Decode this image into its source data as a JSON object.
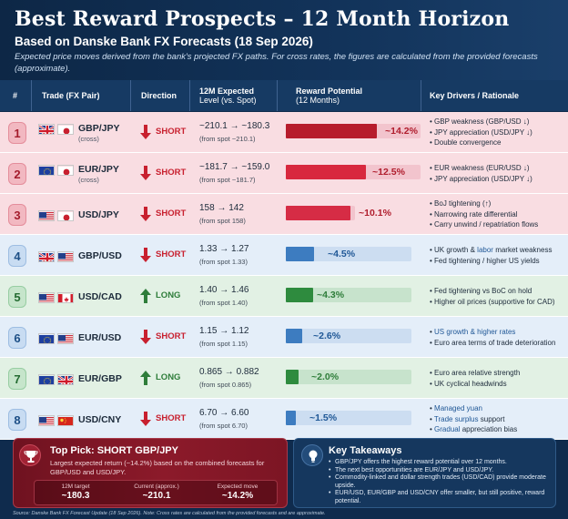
{
  "header": {
    "title": "Best Reward Prospects – 12 Month Horizon",
    "subtitle": "Based on Danske Bank FX Forecasts (18 Sep 2026)",
    "note": "Expected price moves derived from the bank's projected FX paths. For cross rates, the figures are calculated from the provided forecasts (approximate)."
  },
  "columns": {
    "num": "#",
    "trade": "Trade (FX Pair)",
    "direction": "Direction",
    "level_line1": "12M Expected",
    "level_line2": "Level (vs. Spot)",
    "reward_line1": "Reward Potential",
    "reward_line2": "(12 Months)",
    "drivers": "Key Drivers / Rationale"
  },
  "rows": [
    {
      "num": "1",
      "pair": "GBP/JPY",
      "pair_sub": "(cross)",
      "direction": "SHORT",
      "level": "~210.1 → ~180.3",
      "from_spot": "(from spot ~210.1)",
      "reward": "~14.2%",
      "reward_value": 14.2,
      "drivers": [
        "GBP weakness (GBP/USD ↓)",
        "JPY appreciation (USD/JPY ↓)",
        "Double convergence"
      ]
    },
    {
      "num": "2",
      "pair": "EUR/JPY",
      "pair_sub": "(cross)",
      "direction": "SHORT",
      "level": "~181.7 → ~159.0",
      "from_spot": "(from spot ~181.7)",
      "reward": "~12.5%",
      "reward_value": 12.5,
      "drivers": [
        "EUR weakness (EUR/USD ↓)",
        "JPY appreciation (USD/JPY ↓)"
      ]
    },
    {
      "num": "3",
      "pair": "USD/JPY",
      "pair_sub": "",
      "direction": "SHORT",
      "level": "158 → 142",
      "from_spot": "(from spot 158)",
      "reward": "~10.1%",
      "reward_value": 10.1,
      "drivers": [
        "BoJ tightening (↑)",
        "Narrowing rate differential",
        "Carry unwind / repatriation flows"
      ]
    },
    {
      "num": "4",
      "pair": "GBP/USD",
      "pair_sub": "",
      "direction": "SHORT",
      "level": "1.33 → 1.27",
      "from_spot": "(from spot 1.33)",
      "reward": "~4.5%",
      "reward_value": 4.5,
      "drivers": [
        "UK growth & labor market weakness",
        "Fed tightening / higher US yields"
      ]
    },
    {
      "num": "5",
      "pair": "USD/CAD",
      "pair_sub": "",
      "direction": "LONG",
      "level": "1.40 → 1.46",
      "from_spot": "(from spot 1.40)",
      "reward": "~4.3%",
      "reward_value": 4.3,
      "drivers": [
        "Fed tightening vs BoC on hold",
        "Higher oil prices (supportive for CAD)"
      ]
    },
    {
      "num": "6",
      "pair": "EUR/USD",
      "pair_sub": "",
      "direction": "SHORT",
      "level": "1.15 → 1.12",
      "from_spot": "(from spot 1.15)",
      "reward": "~2.6%",
      "reward_value": 2.6,
      "drivers": [
        "US growth & higher rates",
        "Euro area terms of trade deterioration"
      ]
    },
    {
      "num": "7",
      "pair": "EUR/GBP",
      "pair_sub": "",
      "direction": "LONG",
      "level": "0.865 → 0.882",
      "from_spot": "(from spot 0.865)",
      "reward": "~2.0%",
      "reward_value": 2.0,
      "drivers": [
        "Euro area relative strength",
        "UK cyclical headwinds"
      ]
    },
    {
      "num": "8",
      "pair": "USD/CNY",
      "pair_sub": "",
      "direction": "SHORT",
      "level": "6.70 → 6.60",
      "from_spot": "(from spot 6.70)",
      "reward": "~1.5%",
      "reward_value": 1.5,
      "drivers": [
        "Managed yuan",
        "Trade surplus support",
        "Gradual appreciation bias"
      ]
    }
  ],
  "top_pick": {
    "title": "Top Pick: SHORT GBP/JPY",
    "text": "Largest expected return (~14.2%) based on the combined forecasts for GBP/USD and USD/JPY.",
    "stats": [
      {
        "label": "12M target",
        "value": "~180.3"
      },
      {
        "label": "Current (approx.)",
        "value": "~210.1"
      },
      {
        "label": "Expected move",
        "value": "~14.2%"
      }
    ]
  },
  "takeaways": {
    "title": "Key Takeaways",
    "items": [
      "GBP/JPY offers the highest reward potential over 12 months.",
      "The next best opportunities are EUR/JPY and USD/JPY.",
      "Commodity-linked and dollar strength trades (USD/CAD) provide moderate upside.",
      "EUR/USD, EUR/GBP and USD/CNY offer smaller, but still positive, reward potential."
    ]
  },
  "footer": "Source: Danske Bank FX Forecast Update (18 Sep 2026). Note: Cross rates are calculated from the provided forecasts and are approximate.",
  "colors": {
    "short_bar": "#b71c2c",
    "short_bar_2": "#d8283e",
    "neutral_bar": "#3d7cc0",
    "long_bar": "#2e8b3e"
  }
}
